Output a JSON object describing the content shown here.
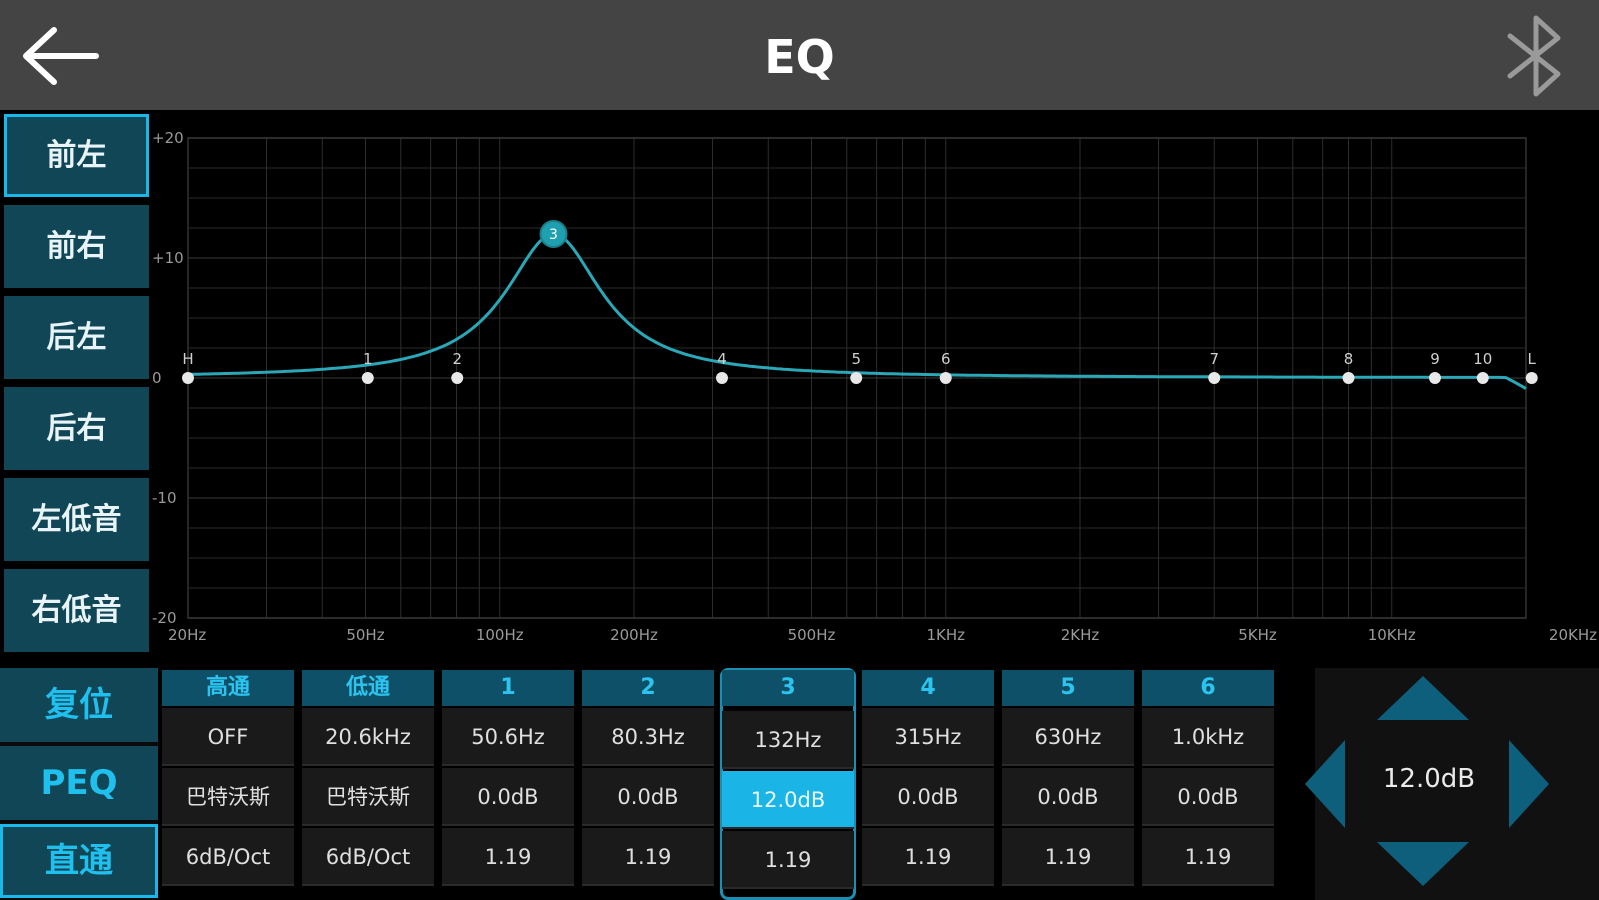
{
  "header": {
    "title": "EQ",
    "back_icon": "back-arrow-icon",
    "bluetooth_icon": "bluetooth-icon"
  },
  "channels": [
    {
      "label": "前左",
      "active": true
    },
    {
      "label": "前右",
      "active": false
    },
    {
      "label": "后左",
      "active": false
    },
    {
      "label": "后右",
      "active": false
    },
    {
      "label": "左低音",
      "active": false
    },
    {
      "label": "右低音",
      "active": false
    }
  ],
  "modes": [
    {
      "label": "复位",
      "active": false
    },
    {
      "label": "PEQ",
      "active": false
    },
    {
      "label": "直通",
      "active": true
    }
  ],
  "colors": {
    "accent": "#1ab4e6",
    "curve": "#2aa8b8",
    "button_bg": "#104656",
    "header_bg": "#444444"
  },
  "graph": {
    "y_ticks": [
      {
        "label": "+20",
        "value": 20
      },
      {
        "label": "+10",
        "value": 10
      },
      {
        "label": "0",
        "value": 0
      },
      {
        "label": "-10",
        "value": -10
      },
      {
        "label": "-20",
        "value": -20
      }
    ],
    "x_ticks": [
      {
        "label": "20Hz",
        "hz": 20
      },
      {
        "label": "50Hz",
        "hz": 50
      },
      {
        "label": "100Hz",
        "hz": 100
      },
      {
        "label": "200Hz",
        "hz": 200
      },
      {
        "label": "500Hz",
        "hz": 500
      },
      {
        "label": "1KHz",
        "hz": 1000
      },
      {
        "label": "2KHz",
        "hz": 2000
      },
      {
        "label": "5KHz",
        "hz": 5000
      },
      {
        "label": "10KHz",
        "hz": 10000
      },
      {
        "label": "20KHz",
        "hz": 20000
      }
    ],
    "points": [
      {
        "label": "H",
        "hz": 20,
        "db": 0
      },
      {
        "label": "1",
        "hz": 50.6,
        "db": 0
      },
      {
        "label": "2",
        "hz": 80.3,
        "db": 0
      },
      {
        "label": "3",
        "hz": 132,
        "db": 12,
        "selected": true
      },
      {
        "label": "4",
        "hz": 315,
        "db": 0
      },
      {
        "label": "5",
        "hz": 630,
        "db": 0
      },
      {
        "label": "6",
        "hz": 1000,
        "db": 0
      },
      {
        "label": "7",
        "hz": 4000,
        "db": 0
      },
      {
        "label": "8",
        "hz": 8000,
        "db": 0
      },
      {
        "label": "9",
        "hz": 12500,
        "db": 0
      },
      {
        "label": "10",
        "hz": 16000,
        "db": 0
      },
      {
        "label": "L",
        "hz": 20600,
        "db": 0
      }
    ],
    "peak": {
      "hz": 132,
      "db": 12,
      "q": 1.19
    }
  },
  "table": {
    "columns": [
      {
        "head": "高通",
        "r1": "OFF",
        "r2": "巴特沃斯",
        "r3": "6dB/Oct"
      },
      {
        "head": "低通",
        "r1": "20.6kHz",
        "r2": "巴特沃斯",
        "r3": "6dB/Oct"
      },
      {
        "head": "1",
        "r1": "50.6Hz",
        "r2": "0.0dB",
        "r3": "1.19"
      },
      {
        "head": "2",
        "r1": "80.3Hz",
        "r2": "0.0dB",
        "r3": "1.19"
      },
      {
        "head": "3",
        "r1": "132Hz",
        "r2": "12.0dB",
        "r3": "1.19",
        "selected": true
      },
      {
        "head": "4",
        "r1": "315Hz",
        "r2": "0.0dB",
        "r3": "1.19"
      },
      {
        "head": "5",
        "r1": "630Hz",
        "r2": "0.0dB",
        "r3": "1.19"
      },
      {
        "head": "6",
        "r1": "1.0kHz",
        "r2": "0.0dB",
        "r3": "1.19"
      }
    ]
  },
  "pad": {
    "value": "12.0dB",
    "icons": [
      "arrow-up-icon",
      "arrow-down-icon",
      "arrow-left-icon",
      "arrow-right-icon"
    ]
  }
}
